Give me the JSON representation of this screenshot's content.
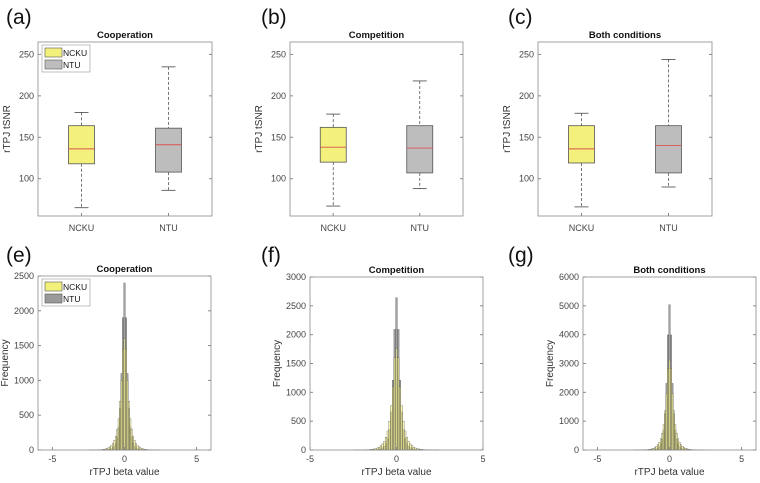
{
  "chart_data": [
    {
      "id": "a",
      "panel_label": "(a)",
      "type": "box",
      "title": "Cooperation",
      "ylabel": "rTPJ tSNR",
      "xlabel": "",
      "categories": [
        "NCKU",
        "NTU"
      ],
      "ylim": [
        55,
        265
      ],
      "yticks": [
        100,
        150,
        200,
        250
      ],
      "legend": {
        "position": "top-left",
        "entries": [
          "NCKU",
          "NTU"
        ]
      },
      "series": [
        {
          "name": "NCKU",
          "min": 65,
          "q1": 118,
          "median": 136,
          "q3": 164,
          "max": 180
        },
        {
          "name": "NTU",
          "min": 86,
          "q1": 108,
          "median": 141,
          "q3": 161,
          "max": 235
        }
      ]
    },
    {
      "id": "b",
      "panel_label": "(b)",
      "type": "box",
      "title": "Competition",
      "ylabel": "rTPJ tSNR",
      "xlabel": "",
      "categories": [
        "NCKU",
        "NTU"
      ],
      "ylim": [
        55,
        265
      ],
      "yticks": [
        100,
        150,
        200,
        250
      ],
      "series": [
        {
          "name": "NCKU",
          "min": 67,
          "q1": 120,
          "median": 138,
          "q3": 162,
          "max": 178
        },
        {
          "name": "NTU",
          "min": 88,
          "q1": 107,
          "median": 137,
          "q3": 164,
          "max": 218
        }
      ]
    },
    {
      "id": "c",
      "panel_label": "(c)",
      "type": "box",
      "title": "Both conditions",
      "ylabel": "rTPJ tSNR",
      "xlabel": "",
      "categories": [
        "NCKU",
        "NTU"
      ],
      "ylim": [
        55,
        265
      ],
      "yticks": [
        100,
        150,
        200,
        250
      ],
      "series": [
        {
          "name": "NCKU",
          "min": 66,
          "q1": 119,
          "median": 136,
          "q3": 164,
          "max": 179
        },
        {
          "name": "NTU",
          "min": 90,
          "q1": 107,
          "median": 140,
          "q3": 164,
          "max": 244
        }
      ]
    },
    {
      "id": "e",
      "panel_label": "(e)",
      "type": "bar",
      "title": "Cooperation",
      "ylabel": "Frequency",
      "xlabel": "rTPJ beta value",
      "xlim": [
        -6,
        6
      ],
      "xticks": [
        -5,
        0,
        5
      ],
      "ylim": [
        0,
        2500
      ],
      "yticks": [
        0,
        500,
        1000,
        1500,
        2000,
        2500
      ],
      "legend": {
        "position": "top-left",
        "entries": [
          "NCKU",
          "NTU"
        ]
      },
      "bin_start": -2.4,
      "bin_width": 0.1,
      "series": [
        {
          "name": "NTU",
          "values": [
            0,
            0,
            0,
            0,
            0,
            0,
            0,
            0,
            0,
            1,
            2,
            3,
            5,
            8,
            12,
            20,
            35,
            60,
            100,
            180,
            330,
            600,
            1100,
            1900,
            2400,
            1900,
            1100,
            600,
            330,
            180,
            100,
            60,
            35,
            20,
            12,
            8,
            5,
            3,
            2,
            1,
            0,
            0,
            0,
            0,
            0,
            0,
            0,
            0,
            0
          ]
        },
        {
          "name": "NCKU",
          "values": [
            1,
            1,
            1,
            1,
            1,
            2,
            3,
            4,
            6,
            8,
            11,
            16,
            22,
            32,
            45,
            65,
            95,
            140,
            200,
            300,
            450,
            700,
            1000,
            1450,
            1600,
            1450,
            1000,
            700,
            450,
            300,
            200,
            140,
            95,
            65,
            45,
            32,
            22,
            16,
            11,
            8,
            6,
            4,
            3,
            2,
            1,
            1,
            1,
            1,
            1
          ]
        }
      ]
    },
    {
      "id": "f",
      "panel_label": "(f)",
      "type": "bar",
      "title": "Competition",
      "ylabel": "Frequency",
      "xlabel": "rTPJ beta value",
      "xlim": [
        -5,
        5
      ],
      "xticks": [
        -5,
        0,
        5
      ],
      "ylim": [
        0,
        3000
      ],
      "yticks": [
        0,
        500,
        1000,
        1500,
        2000,
        2500,
        3000
      ],
      "bin_start": -2.4,
      "bin_width": 0.1,
      "series": [
        {
          "name": "NTU",
          "values": [
            0,
            0,
            0,
            0,
            0,
            0,
            0,
            0,
            0,
            1,
            2,
            3,
            6,
            9,
            13,
            22,
            39,
            66,
            110,
            200,
            360,
            660,
            1210,
            2090,
            2640,
            2090,
            1210,
            660,
            360,
            200,
            110,
            66,
            39,
            22,
            13,
            9,
            6,
            3,
            2,
            1,
            0,
            0,
            0,
            0,
            0,
            0,
            0,
            0,
            0
          ]
        },
        {
          "name": "NCKU",
          "values": [
            1,
            1,
            1,
            1,
            1,
            2,
            3,
            4,
            7,
            9,
            12,
            18,
            24,
            35,
            50,
            72,
            105,
            154,
            220,
            330,
            500,
            770,
            1100,
            1600,
            1760,
            1600,
            1100,
            770,
            500,
            330,
            220,
            154,
            105,
            72,
            50,
            35,
            24,
            18,
            12,
            9,
            7,
            4,
            3,
            2,
            1,
            1,
            1,
            1,
            1
          ]
        }
      ]
    },
    {
      "id": "g",
      "panel_label": "(g)",
      "type": "bar",
      "title": "Both conditions",
      "ylabel": "Frequency",
      "xlabel": "rTPJ beta value",
      "xlim": [
        -6,
        6
      ],
      "xticks": [
        -5,
        0,
        5
      ],
      "ylim": [
        0,
        6000
      ],
      "yticks": [
        0,
        1000,
        2000,
        3000,
        4000,
        5000,
        6000
      ],
      "bin_start": -2.4,
      "bin_width": 0.1,
      "series": [
        {
          "name": "NTU",
          "values": [
            0,
            0,
            0,
            0,
            0,
            0,
            0,
            0,
            0,
            2,
            4,
            6,
            11,
            17,
            25,
            42,
            74,
            126,
            210,
            378,
            693,
            1260,
            2310,
            3990,
            5040,
            3990,
            2310,
            1260,
            693,
            378,
            210,
            126,
            74,
            42,
            25,
            17,
            11,
            6,
            4,
            2,
            0,
            0,
            0,
            0,
            0,
            0,
            0,
            0,
            0
          ]
        },
        {
          "name": "NCKU",
          "values": [
            2,
            2,
            2,
            2,
            2,
            4,
            6,
            8,
            12,
            16,
            21,
            31,
            43,
            62,
            88,
            127,
            185,
            273,
            390,
            585,
            878,
            1365,
            1950,
            2830,
            3120,
            2830,
            1950,
            1365,
            878,
            585,
            390,
            273,
            185,
            127,
            88,
            62,
            43,
            31,
            21,
            16,
            12,
            8,
            6,
            4,
            2,
            2,
            2,
            2,
            2
          ]
        }
      ]
    }
  ],
  "colors": {
    "NCKU": "#f3f07c",
    "NTU": "#bdbdbd",
    "median": "#d9534f",
    "axis": "#8a8a8a"
  }
}
